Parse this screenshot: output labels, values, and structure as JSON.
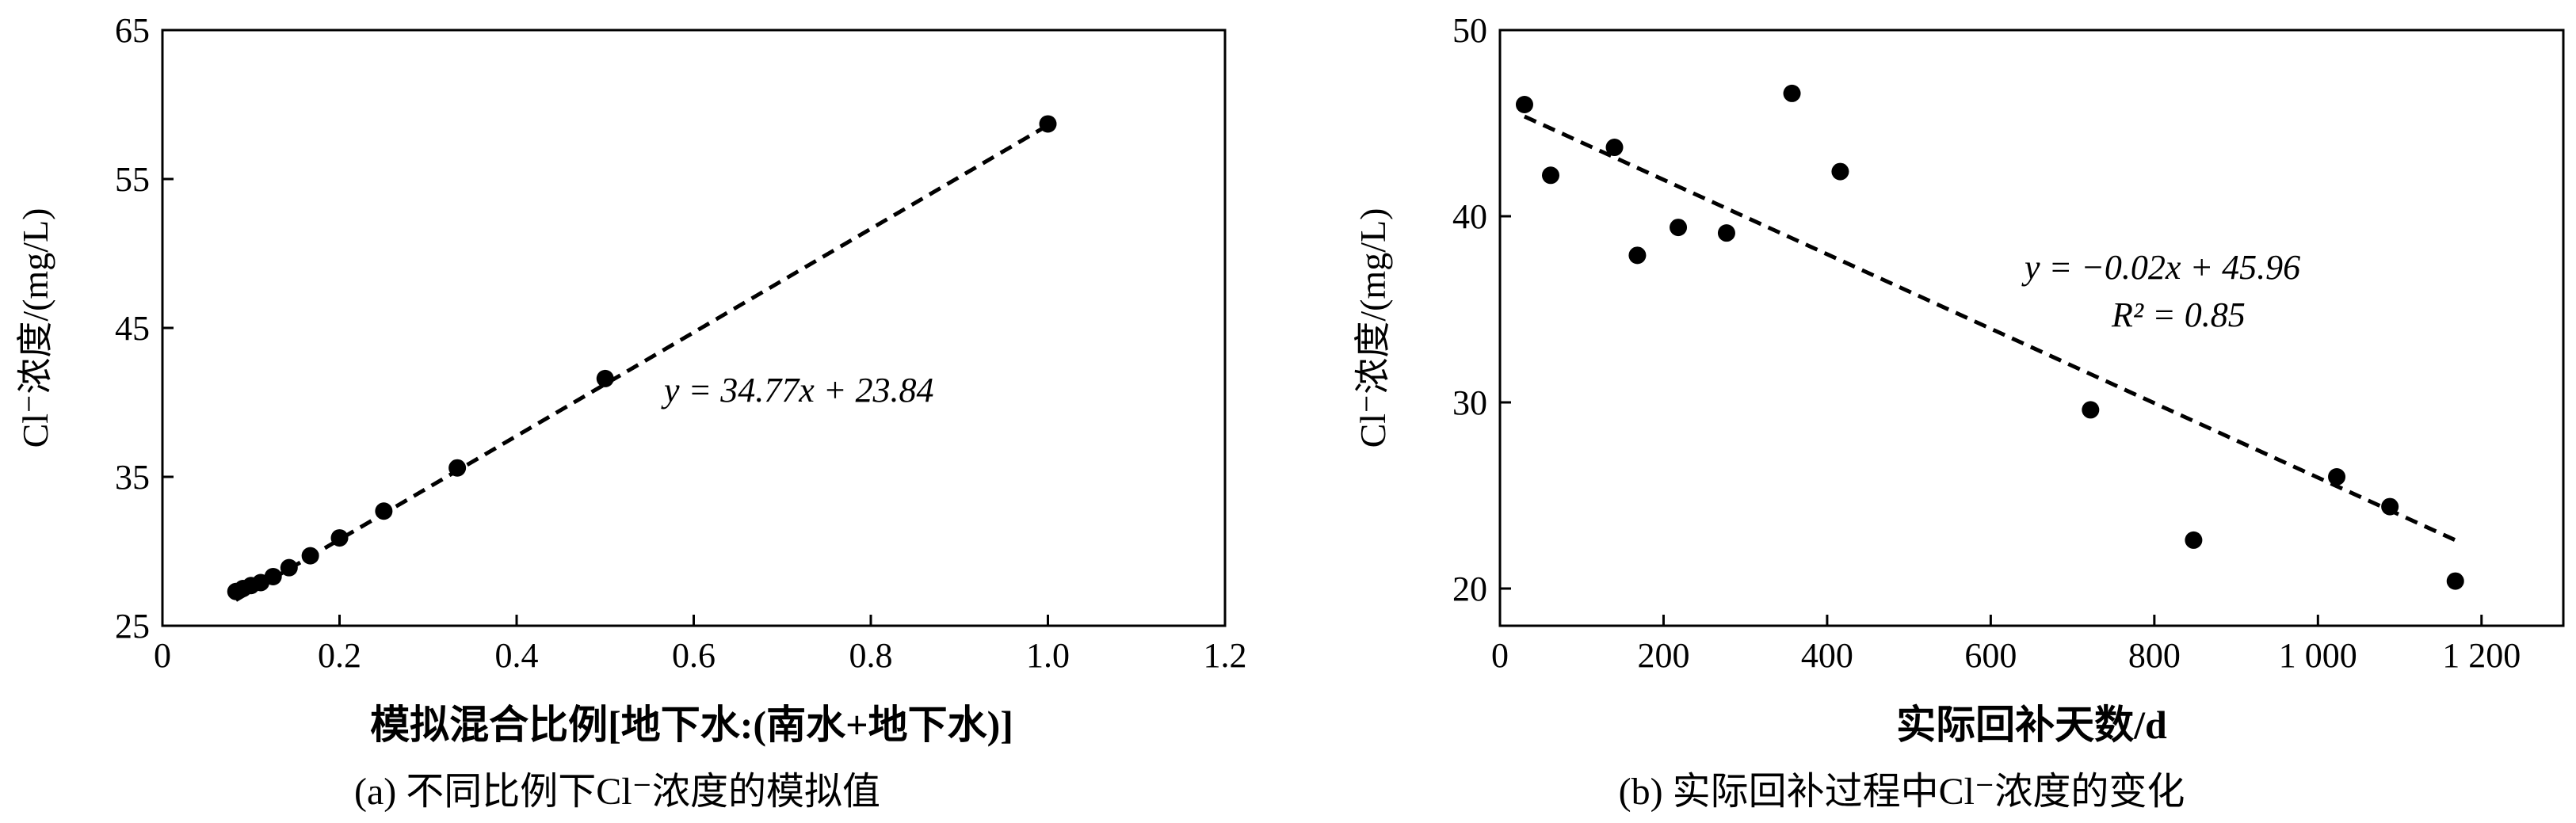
{
  "chart_data": [
    {
      "type": "scatter",
      "caption": "(a)  不同比例下Cl⁻浓度的模拟值",
      "xlabel": "模拟混合比例[地下水:(南水+地下水)]",
      "ylabel": "Cl⁻浓度/(mg/L)",
      "xlim": [
        0,
        1.2
      ],
      "ylim": [
        25,
        65
      ],
      "xticks": [
        0,
        0.2,
        0.4,
        0.6,
        0.8,
        1.0,
        1.2
      ],
      "xtick_labels": [
        "0",
        "0.2",
        "0.4",
        "0.6",
        "0.8",
        "1.0",
        "1.2"
      ],
      "yticks": [
        25,
        35,
        45,
        55,
        65
      ],
      "ytick_labels": [
        "25",
        "35",
        "45",
        "55",
        "65"
      ],
      "grid": false,
      "series": [
        {
          "x": [
            0.083,
            0.091,
            0.1,
            0.111,
            0.125,
            0.143,
            0.167,
            0.2,
            0.25,
            0.333,
            0.5,
            1.0
          ],
          "y": [
            27.3,
            27.5,
            27.7,
            27.9,
            28.3,
            28.9,
            29.7,
            30.9,
            32.7,
            35.6,
            41.6,
            58.7
          ]
        }
      ],
      "fit_line": {
        "style": "dashed",
        "slope": 34.77,
        "intercept": 23.84,
        "x_range": [
          0.083,
          1.0
        ]
      },
      "annotations": [
        {
          "text": "y = 34.77x + 23.84"
        }
      ]
    },
    {
      "type": "scatter",
      "caption": "(b)  实际回补过程中Cl⁻浓度的变化",
      "xlabel": "实际回补天数/d",
      "ylabel": "Cl⁻浓度/(mg/L)",
      "xlim": [
        0,
        1300
      ],
      "ylim": [
        18,
        50
      ],
      "xticks": [
        0,
        200,
        400,
        600,
        800,
        1000,
        1200
      ],
      "xtick_labels": [
        "0",
        "200",
        "400",
        "600",
        "800",
        "1 000",
        "1 200"
      ],
      "yticks": [
        20,
        30,
        40,
        50
      ],
      "ytick_labels": [
        "20",
        "30",
        "40",
        "50"
      ],
      "grid": false,
      "series": [
        {
          "x": [
            30,
            62,
            140,
            168,
            218,
            277,
            357,
            416,
            722,
            848,
            1023,
            1088,
            1168
          ],
          "y": [
            46.0,
            42.2,
            43.7,
            37.9,
            39.4,
            39.1,
            46.6,
            42.4,
            29.6,
            22.6,
            26.0,
            24.4,
            20.4
          ]
        }
      ],
      "fit_line": {
        "style": "dashed",
        "slope": -0.02,
        "intercept": 45.96,
        "x_range": [
          30,
          1168
        ]
      },
      "annotations": [
        {
          "text": "y = −0.02x + 45.96"
        },
        {
          "text": "R² = 0.85"
        }
      ]
    }
  ]
}
